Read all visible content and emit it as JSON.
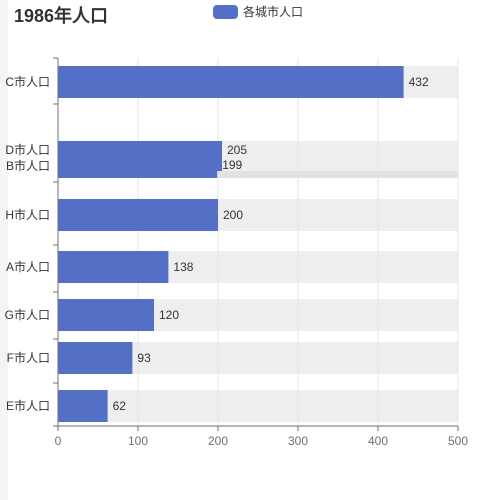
{
  "colors": {
    "series": "#5470c6",
    "background_band": "#eeeeee",
    "highlight_band": "#e2e2e2",
    "grid": "#e5e5e5",
    "axis": "#6e7079",
    "text": "#333333",
    "label": "#333333"
  },
  "chart_data": {
    "type": "bar",
    "orientation": "horizontal",
    "title": "1986年人口",
    "legend_position": "top-center",
    "categories": [
      "E市人口",
      "F市人口",
      "G市人口",
      "A市人口",
      "H市人口",
      "B市人口",
      "D市人口",
      "C市人口"
    ],
    "series": [
      {
        "name": "各城市人口",
        "values": [
          62,
          93,
          120,
          138,
          200,
          199,
          205,
          432
        ]
      }
    ],
    "xlim": [
      0,
      500
    ],
    "x_ticks": [
      0,
      100,
      200,
      300,
      400,
      500
    ],
    "x_tick_labels": [
      "0",
      "100",
      "200",
      "300",
      "400",
      "500"
    ],
    "category_labels_visible": [
      "E市人口",
      "F市人口",
      "G市人口",
      "A市人口",
      "H市人口",
      "B市人口",
      "D市人口",
      "C市人口"
    ],
    "grid": true,
    "background_bars": true,
    "highlighted_category": "B市人口"
  }
}
